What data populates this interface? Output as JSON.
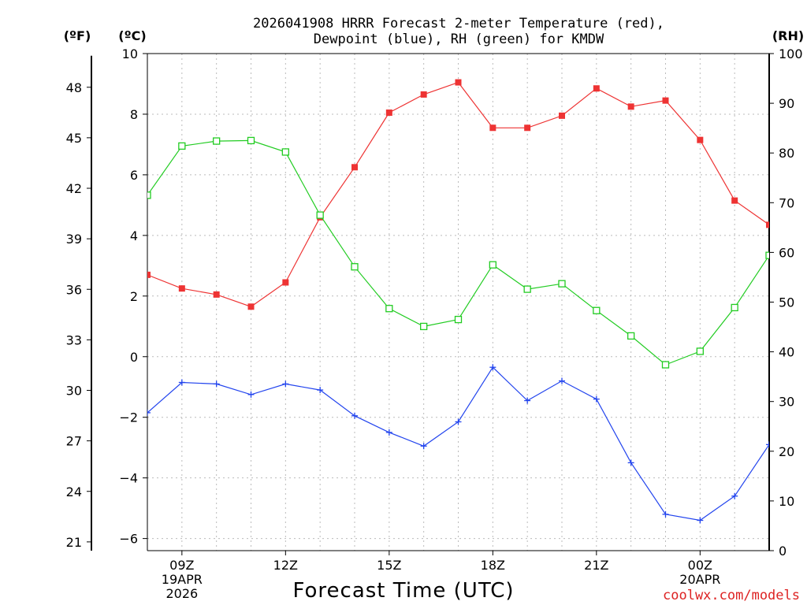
{
  "chart_data": {
    "type": "line",
    "title_line1": "2026041908 HRRR Forecast 2-meter Temperature (red),",
    "title_line2": "Dewpoint (blue), RH (green) for KMDW",
    "unit_f": "(ºF)",
    "unit_c": "(ºC)",
    "unit_rh": "(RH)",
    "xlabel": "Forecast Time (UTC)",
    "credit": "coolwx.com/models",
    "x_hours": [
      8,
      9,
      10,
      11,
      12,
      13,
      14,
      15,
      16,
      17,
      18,
      19,
      20,
      21,
      22,
      23,
      24,
      25,
      26
    ],
    "x_range": [
      8,
      26
    ],
    "x_ticks": [
      {
        "hour": 9,
        "labels": [
          "09Z",
          "19APR",
          "2026"
        ]
      },
      {
        "hour": 12,
        "labels": [
          "12Z"
        ]
      },
      {
        "hour": 15,
        "labels": [
          "15Z"
        ]
      },
      {
        "hour": 18,
        "labels": [
          "18Z"
        ]
      },
      {
        "hour": 21,
        "labels": [
          "21Z"
        ]
      },
      {
        "hour": 24,
        "labels": [
          "00Z",
          "20APR"
        ]
      }
    ],
    "c_axis": {
      "range": [
        -6.4,
        10
      ],
      "ticks": [
        -6,
        -4,
        -2,
        0,
        2,
        4,
        6,
        8,
        10
      ],
      "grid": [
        -6,
        -4,
        -2,
        0,
        2,
        4,
        6,
        8
      ]
    },
    "f_axis": {
      "ticks": [
        21,
        24,
        27,
        30,
        33,
        36,
        39,
        42,
        45,
        48
      ]
    },
    "rh_axis": {
      "range": [
        0,
        100
      ],
      "ticks": [
        0,
        10,
        20,
        30,
        40,
        50,
        60,
        70,
        80,
        90,
        100
      ]
    },
    "series": [
      {
        "name": "Temperature",
        "axis": "c",
        "color": "#ee3333",
        "marker": "filled-square",
        "values": [
          2.7,
          2.25,
          2.05,
          1.65,
          2.45,
          4.6,
          6.25,
          8.05,
          8.65,
          9.05,
          7.55,
          7.55,
          7.95,
          8.85,
          8.25,
          8.45,
          7.15,
          5.15,
          4.35
        ]
      },
      {
        "name": "Dewpoint",
        "axis": "c",
        "color": "#2244ee",
        "marker": "plus",
        "values": [
          -1.85,
          -0.85,
          -0.9,
          -1.25,
          -0.9,
          -1.1,
          -1.95,
          -2.5,
          -2.95,
          -2.15,
          -0.35,
          -1.45,
          -0.8,
          -1.4,
          -3.5,
          -5.2,
          -5.4,
          -4.6,
          -2.9
        ]
      },
      {
        "name": "RH",
        "axis": "rh",
        "color": "#22cc22",
        "marker": "open-square",
        "values": [
          71.5,
          81.4,
          82.4,
          82.5,
          80.2,
          67.5,
          57.1,
          48.7,
          45.1,
          46.5,
          57.5,
          52.6,
          53.7,
          48.3,
          43.2,
          37.4,
          40.1,
          48.9,
          59.4
        ]
      }
    ]
  }
}
